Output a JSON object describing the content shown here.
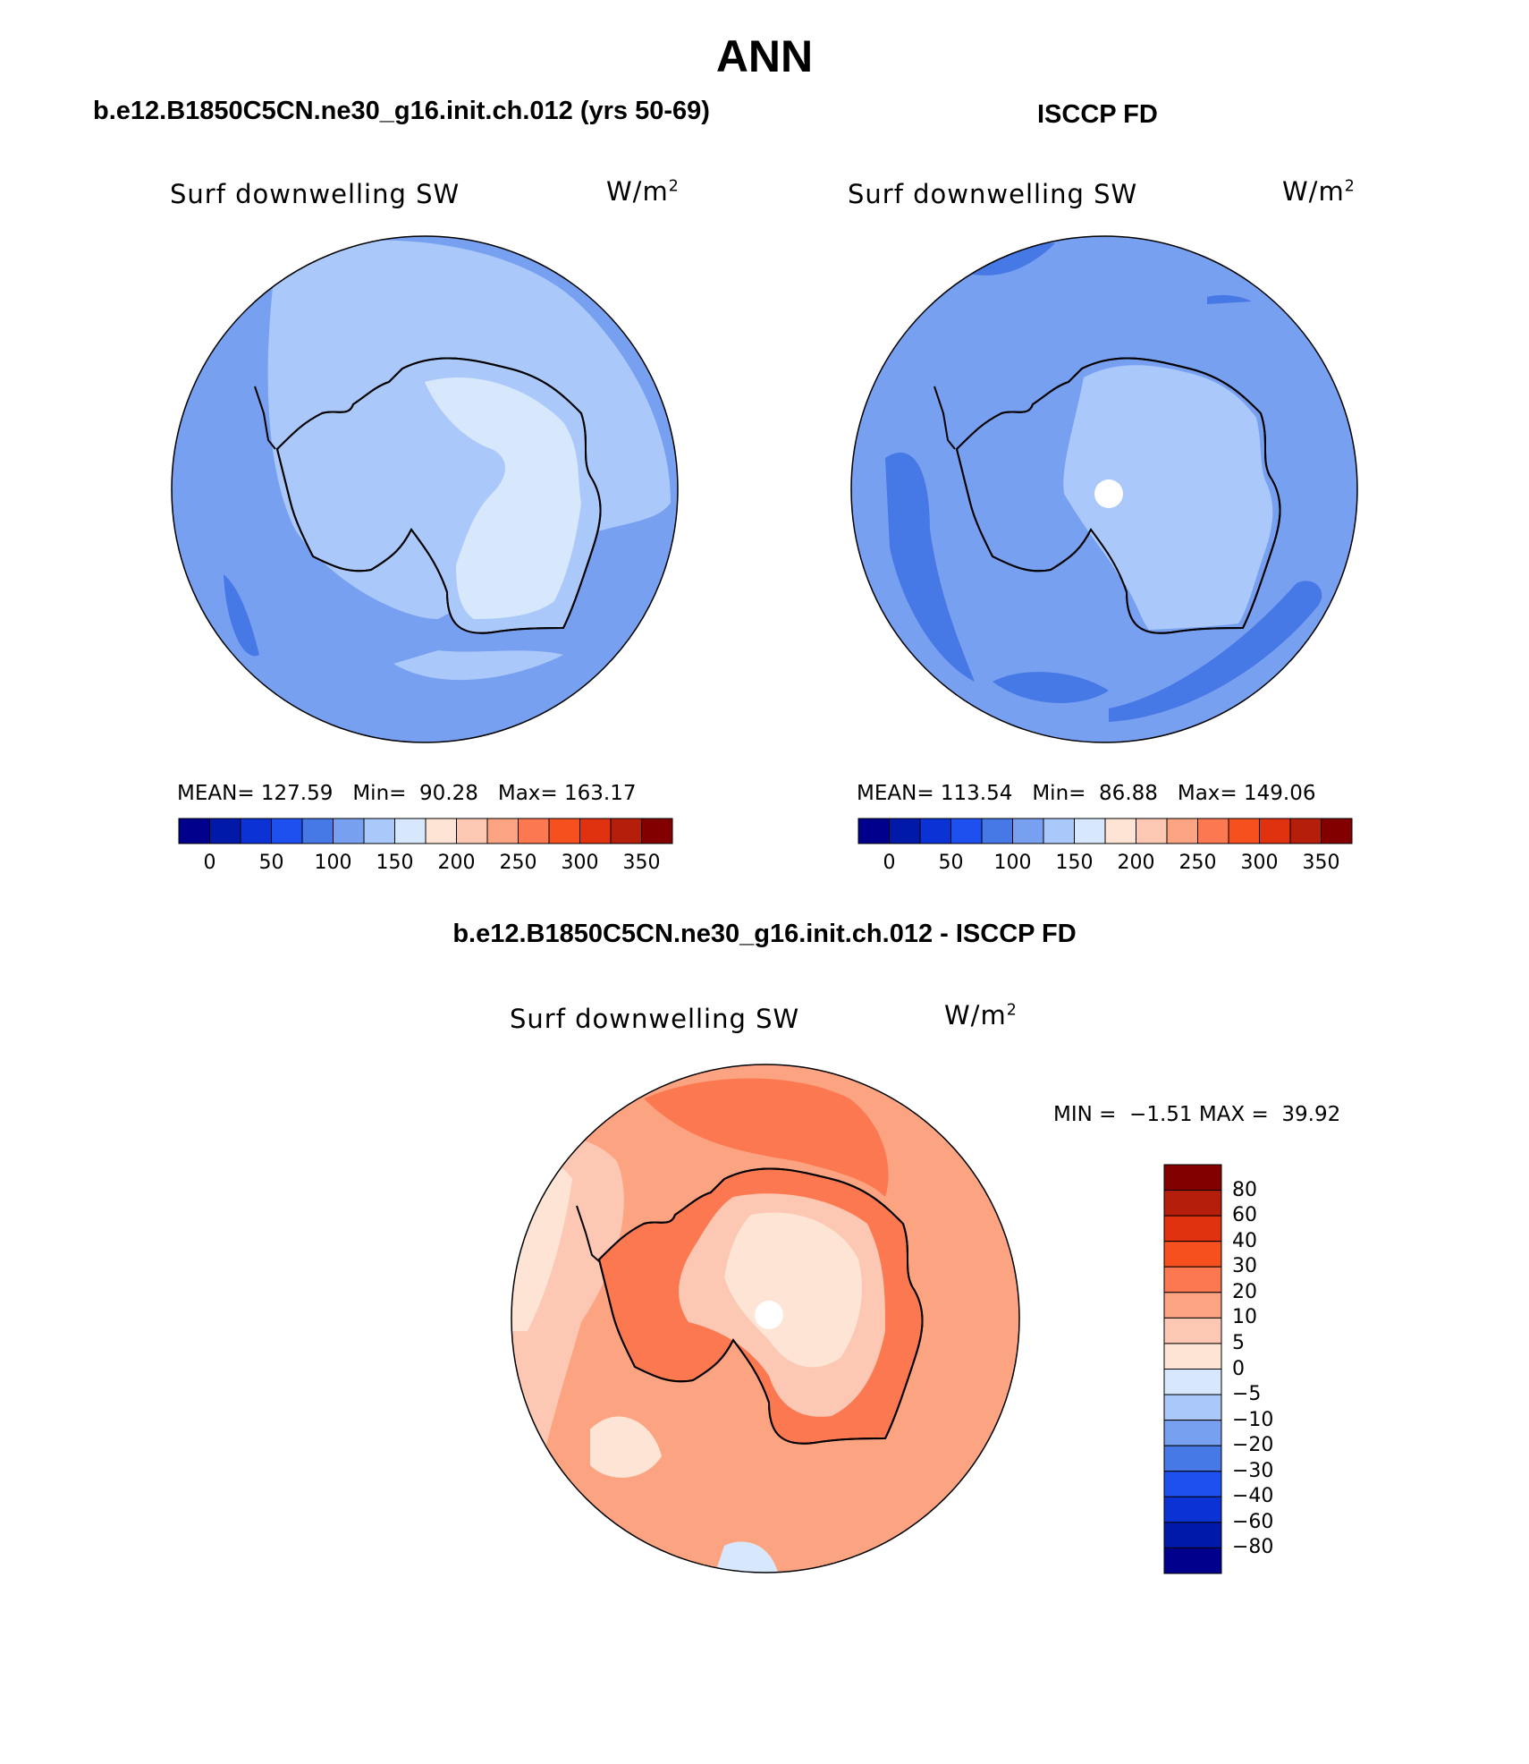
{
  "title": "ANN",
  "panels": {
    "model": {
      "heading": "b.e12.B1850C5CN.ne30_g16.init.ch.012 (yrs 50-69)",
      "variable": "Surf downwelling SW",
      "units_base": "W/m",
      "units_exp": "2",
      "mean_label": "MEAN=",
      "mean": "127.59",
      "min_label": "Min=",
      "min": "90.28",
      "max_label": "Max=",
      "max": "163.17"
    },
    "obs": {
      "heading": "ISCCP FD",
      "variable": "Surf downwelling SW",
      "units_base": "W/m",
      "units_exp": "2",
      "mean_label": "MEAN=",
      "mean": "113.54",
      "min_label": "Min=",
      "min": "86.88",
      "max_label": "Max=",
      "max": "149.06"
    },
    "diff": {
      "heading": "b.e12.B1850C5CN.ne30_g16.init.ch.012 - ISCCP FD",
      "variable": "Surf downwelling SW",
      "units_base": "W/m",
      "units_exp": "2",
      "min_label": "MIN =",
      "min": "−1.51",
      "max_label": "MAX =",
      "max": "39.92"
    }
  },
  "colorbar_abs": {
    "colors": [
      "#00008c",
      "#0019a8",
      "#0a32d4",
      "#1e50f0",
      "#4678e6",
      "#78a0f0",
      "#aac8fa",
      "#d7e8fc",
      "#fde4d4",
      "#fcc8b4",
      "#fca482",
      "#fc7850",
      "#f5501e",
      "#e13210",
      "#b41e0a",
      "#820000"
    ],
    "tick_labels": [
      "0",
      "50",
      "100",
      "150",
      "200",
      "250",
      "300",
      "350"
    ]
  },
  "colorbar_diff": {
    "colors_top_to_bottom": [
      "#820000",
      "#b41e0a",
      "#e13210",
      "#f5501e",
      "#fc7850",
      "#fca482",
      "#fcc8b4",
      "#fde4d4",
      "#d7e8fc",
      "#aac8fa",
      "#78a0f0",
      "#4678e6",
      "#1e50f0",
      "#0a32d4",
      "#0019a8",
      "#00008c"
    ],
    "tick_labels": [
      "80",
      "60",
      "40",
      "30",
      "20",
      "10",
      "5",
      "0",
      "−5",
      "−10",
      "−20",
      "−30",
      "−40",
      "−60",
      "−80"
    ]
  },
  "map_colors": {
    "abs_ocean": "#78a0f0",
    "abs_ocean_dark": "#4678e6",
    "abs_mid": "#aac8fa",
    "abs_high": "#d7e8fc",
    "diff_ocean": "#fca482",
    "diff_light": "#fcc8b4",
    "diff_pale": "#fde4d4",
    "diff_strong": "#fc7850",
    "diff_neg": "#d7e8fc",
    "coast": "#000000"
  }
}
